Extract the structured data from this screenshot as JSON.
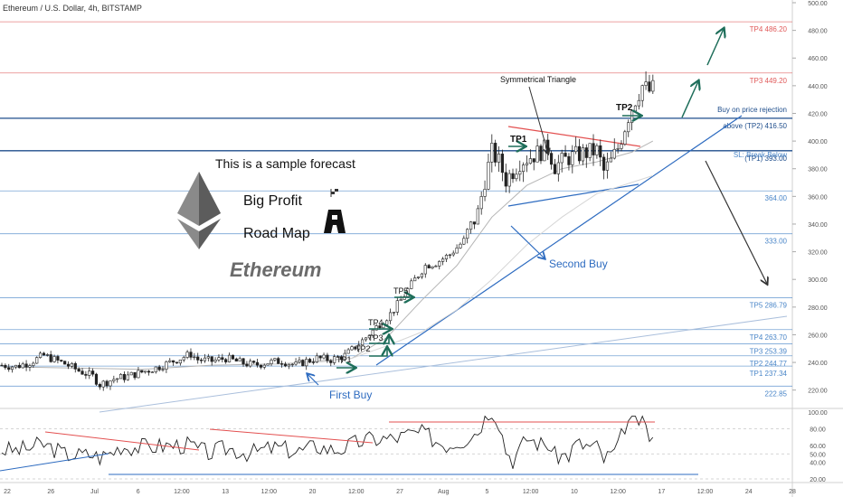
{
  "header": {
    "symbol_line": "Ethereum / U.S. Dollar, 4h, BITSTAMP"
  },
  "chart_data": [
    {
      "type": "candlestick",
      "symbol": "Ethereum / U.S. Dollar",
      "interval": "4h",
      "exchange": "BITSTAMP",
      "ylim": [
        210,
        500
      ],
      "y_ticks": [
        220,
        240,
        260,
        280,
        300,
        320,
        340,
        360,
        380,
        400,
        420,
        440,
        460,
        480,
        500
      ],
      "y_tick_labels": [
        "220.00",
        "240.00",
        "260.00",
        "280.00",
        "300.00",
        "320.00",
        "340.00",
        "360.00",
        "380.00",
        "400.00",
        "420.00",
        "440.00",
        "460.00",
        "480.00",
        "500.00"
      ],
      "x_tick_labels": [
        "22",
        "26",
        "Jul",
        "6",
        "12:00",
        "13",
        "12:00",
        "20",
        "12:00",
        "27",
        "Aug",
        "5",
        "12:00",
        "10",
        "12:00",
        "17",
        "12:00",
        "24",
        "28"
      ],
      "levels": [
        {
          "label": "TP4 486.20",
          "value": 486.2,
          "color": "#e05a5a"
        },
        {
          "label": "TP3 449.20",
          "value": 449.2,
          "color": "#e05a5a"
        },
        {
          "label": "above (TP2) 416.50",
          "value": 416.5,
          "color": "#1f4e8c"
        },
        {
          "label": "(TP1) 393.00",
          "value": 393.0,
          "color": "#1f4e8c"
        },
        {
          "label": "364.00",
          "value": 364.0,
          "color": "#4a86c8"
        },
        {
          "label": "333.00",
          "value": 333.0,
          "color": "#4a86c8"
        },
        {
          "label": "TP5 286.79",
          "value": 286.79,
          "color": "#4a86c8"
        },
        {
          "label": "TP4 263.70",
          "value": 263.7,
          "color": "#4a86c8"
        },
        {
          "label": "TP3 253.39",
          "value": 253.39,
          "color": "#4a86c8"
        },
        {
          "label": "TP2 244.77",
          "value": 244.77,
          "color": "#4a86c8"
        },
        {
          "label": "TP1 237.34",
          "value": 237.34,
          "color": "#4a86c8"
        },
        {
          "label": "222.85",
          "value": 222.85,
          "color": "#4a86c8"
        }
      ],
      "level_notes": [
        "Buy on price rejection",
        "SL: Break Below"
      ],
      "annotations": [
        "Symmetrical Triangle",
        "Second Buy",
        "First Buy",
        "TP1",
        "TP2",
        "TP3",
        "TP4",
        "TP5"
      ],
      "price_path": [
        [
          0,
          238
        ],
        [
          4,
          237
        ],
        [
          8,
          240
        ],
        [
          12,
          245
        ],
        [
          14,
          243
        ],
        [
          18,
          239
        ],
        [
          22,
          234
        ],
        [
          26,
          230
        ],
        [
          28,
          224
        ],
        [
          32,
          228
        ],
        [
          36,
          230
        ],
        [
          40,
          233
        ],
        [
          44,
          236
        ],
        [
          48,
          240
        ],
        [
          52,
          244
        ],
        [
          54,
          246
        ],
        [
          56,
          242
        ],
        [
          60,
          241
        ],
        [
          64,
          243
        ],
        [
          68,
          240
        ],
        [
          72,
          238
        ],
        [
          76,
          240
        ],
        [
          80,
          241
        ],
        [
          84,
          238
        ],
        [
          87,
          241
        ],
        [
          90,
          243
        ],
        [
          94,
          242
        ],
        [
          98,
          245
        ],
        [
          100,
          249
        ],
        [
          104,
          258
        ],
        [
          108,
          268
        ],
        [
          111,
          275
        ],
        [
          114,
          285
        ],
        [
          118,
          300
        ],
        [
          121,
          310
        ],
        [
          124,
          312
        ],
        [
          128,
          318
        ],
        [
          132,
          328
        ],
        [
          136,
          348
        ],
        [
          138,
          372
        ],
        [
          140,
          392
        ],
        [
          142,
          385
        ],
        [
          144,
          372
        ],
        [
          148,
          385
        ],
        [
          152,
          390
        ],
        [
          156,
          395
        ],
        [
          158,
          382
        ],
        [
          162,
          388
        ],
        [
          166,
          391
        ],
        [
          170,
          393
        ],
        [
          172,
          378
        ],
        [
          174,
          385
        ],
        [
          176,
          395
        ],
        [
          179,
          418
        ],
        [
          181,
          430
        ],
        [
          183,
          440
        ],
        [
          185,
          436
        ],
        [
          186,
          438
        ]
      ],
      "ma_fast": [
        [
          0,
          237
        ],
        [
          20,
          236
        ],
        [
          40,
          235
        ],
        [
          60,
          238
        ],
        [
          80,
          239
        ],
        [
          100,
          243
        ],
        [
          110,
          258
        ],
        [
          120,
          285
        ],
        [
          130,
          310
        ],
        [
          140,
          345
        ],
        [
          150,
          368
        ],
        [
          160,
          380
        ],
        [
          170,
          385
        ],
        [
          180,
          392
        ],
        [
          186,
          400
        ]
      ],
      "ma_slow": [
        [
          70,
          238
        ],
        [
          90,
          240
        ],
        [
          100,
          243
        ],
        [
          110,
          252
        ],
        [
          120,
          262
        ],
        [
          130,
          278
        ],
        [
          140,
          300
        ],
        [
          150,
          325
        ],
        [
          160,
          345
        ],
        [
          170,
          362
        ],
        [
          186,
          375
        ]
      ],
      "oscillator": {
        "ylim": [
          20,
          100
        ],
        "y_ticks": [
          20,
          40,
          50,
          60,
          80,
          100
        ],
        "y_tick_labels": [
          "20.00",
          "40.00",
          "50.00",
          "60.00",
          "80.00",
          "100.00"
        ]
      }
    }
  ],
  "overlay": {
    "sample_text": "This is a sample forecast",
    "big_profit": "Big Profit",
    "road_map": "Road Map",
    "coin_name": "Ethereum"
  }
}
